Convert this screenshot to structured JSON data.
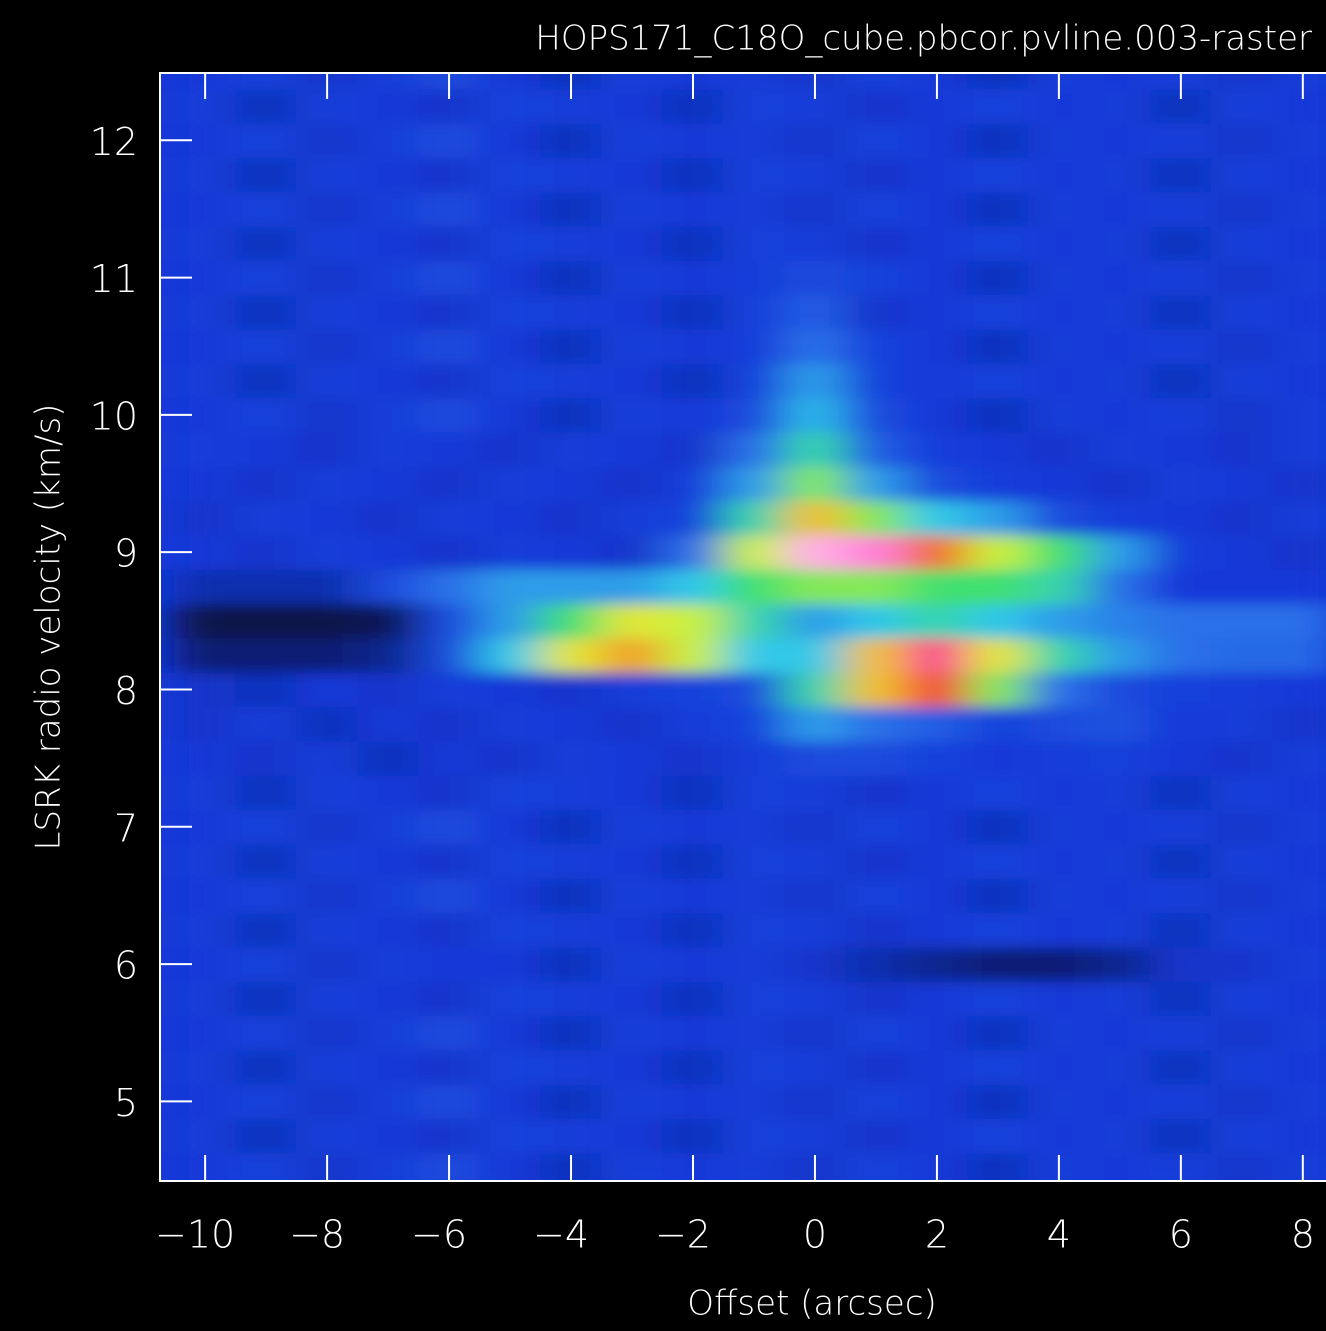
{
  "chart_data": {
    "type": "heatmap",
    "title": "HOPS171_C18O_cube.pbcor.pvline.003-raster",
    "xlabel": "Offset (arcsec)",
    "ylabel": "LSRK radio velocity  (km/s)",
    "xlim": [
      -10.74,
      8.38
    ],
    "ylim": [
      4.42,
      12.49
    ],
    "xticks": [
      {
        "value": -10,
        "label": "−10"
      },
      {
        "value": -8,
        "label": "−8"
      },
      {
        "value": -6,
        "label": "−6"
      },
      {
        "value": -4,
        "label": "−4"
      },
      {
        "value": -2,
        "label": "−2"
      },
      0,
      2,
      4,
      6,
      8
    ],
    "yticks": [
      5,
      6,
      7,
      8,
      9,
      10,
      11,
      12
    ],
    "colormap": [
      [
        0,
        "#000000"
      ],
      [
        0.15,
        "#1438d8"
      ],
      [
        0.3,
        "#2a70e8"
      ],
      [
        0.4,
        "#30c8e8"
      ],
      [
        0.5,
        "#40e070"
      ],
      [
        0.6,
        "#c8f040"
      ],
      [
        0.68,
        "#f0e030"
      ],
      [
        0.78,
        "#f04020"
      ],
      [
        0.88,
        "#ff40c0"
      ],
      [
        1,
        "#ffffff"
      ]
    ],
    "x": [
      -10,
      -9,
      -8,
      -7,
      -6,
      -5,
      -4,
      -3,
      -2,
      -1,
      0,
      1,
      2,
      3,
      4,
      5,
      6,
      7,
      8
    ],
    "y": [
      4.5,
      4.75,
      5.0,
      5.25,
      5.5,
      5.75,
      6.0,
      6.25,
      6.5,
      6.75,
      7.0,
      7.25,
      7.5,
      7.75,
      8.0,
      8.25,
      8.5,
      8.75,
      9.0,
      9.25,
      9.5,
      9.75,
      10.0,
      10.25,
      10.5,
      10.75,
      11.0,
      11.25,
      11.5,
      11.75,
      12.0,
      12.25,
      12.5
    ],
    "z": [
      [
        0.15,
        0.18,
        0.14,
        0.16,
        0.2,
        0.15,
        0.13,
        0.17,
        0.15,
        0.16,
        0.14,
        0.18,
        0.15,
        0.13,
        0.16,
        0.15,
        0.17,
        0.14,
        0.16
      ],
      [
        0.16,
        0.13,
        0.17,
        0.15,
        0.14,
        0.18,
        0.16,
        0.15,
        0.13,
        0.17,
        0.16,
        0.14,
        0.15,
        0.18,
        0.15,
        0.16,
        0.13,
        0.17,
        0.15
      ],
      [
        0.15,
        0.18,
        0.14,
        0.16,
        0.2,
        0.15,
        0.13,
        0.17,
        0.15,
        0.16,
        0.14,
        0.18,
        0.15,
        0.13,
        0.16,
        0.15,
        0.17,
        0.14,
        0.16
      ],
      [
        0.16,
        0.13,
        0.17,
        0.15,
        0.14,
        0.18,
        0.16,
        0.15,
        0.13,
        0.17,
        0.16,
        0.14,
        0.15,
        0.18,
        0.15,
        0.16,
        0.13,
        0.17,
        0.15
      ],
      [
        0.15,
        0.18,
        0.14,
        0.16,
        0.2,
        0.15,
        0.13,
        0.17,
        0.15,
        0.16,
        0.14,
        0.18,
        0.15,
        0.13,
        0.16,
        0.15,
        0.17,
        0.14,
        0.16
      ],
      [
        0.16,
        0.13,
        0.17,
        0.15,
        0.14,
        0.18,
        0.16,
        0.15,
        0.13,
        0.17,
        0.16,
        0.14,
        0.15,
        0.18,
        0.15,
        0.16,
        0.13,
        0.17,
        0.15
      ],
      [
        0.15,
        0.18,
        0.14,
        0.16,
        0.15,
        0.15,
        0.13,
        0.17,
        0.15,
        0.16,
        0.14,
        0.12,
        0.1,
        0.08,
        0.08,
        0.1,
        0.14,
        0.14,
        0.16
      ],
      [
        0.16,
        0.13,
        0.17,
        0.15,
        0.14,
        0.18,
        0.16,
        0.15,
        0.13,
        0.17,
        0.16,
        0.14,
        0.15,
        0.18,
        0.15,
        0.16,
        0.13,
        0.17,
        0.15
      ],
      [
        0.15,
        0.18,
        0.14,
        0.16,
        0.2,
        0.15,
        0.13,
        0.17,
        0.15,
        0.16,
        0.14,
        0.18,
        0.15,
        0.13,
        0.16,
        0.15,
        0.17,
        0.14,
        0.16
      ],
      [
        0.16,
        0.13,
        0.17,
        0.15,
        0.14,
        0.18,
        0.16,
        0.15,
        0.13,
        0.17,
        0.16,
        0.14,
        0.15,
        0.18,
        0.15,
        0.16,
        0.13,
        0.17,
        0.15
      ],
      [
        0.15,
        0.18,
        0.14,
        0.16,
        0.2,
        0.15,
        0.13,
        0.17,
        0.15,
        0.16,
        0.14,
        0.18,
        0.15,
        0.13,
        0.16,
        0.15,
        0.17,
        0.14,
        0.16
      ],
      [
        0.16,
        0.13,
        0.17,
        0.15,
        0.14,
        0.18,
        0.16,
        0.15,
        0.13,
        0.17,
        0.16,
        0.14,
        0.15,
        0.18,
        0.15,
        0.16,
        0.13,
        0.17,
        0.15
      ],
      [
        0.15,
        0.14,
        0.16,
        0.13,
        0.15,
        0.14,
        0.16,
        0.15,
        0.14,
        0.16,
        0.2,
        0.2,
        0.18,
        0.15,
        0.16,
        0.17,
        0.15,
        0.14,
        0.16
      ],
      [
        0.14,
        0.16,
        0.13,
        0.15,
        0.14,
        0.16,
        0.15,
        0.14,
        0.16,
        0.18,
        0.35,
        0.3,
        0.25,
        0.18,
        0.2,
        0.22,
        0.15,
        0.16,
        0.14
      ],
      [
        0.14,
        0.13,
        0.15,
        0.14,
        0.16,
        0.15,
        0.14,
        0.16,
        0.18,
        0.2,
        0.45,
        0.7,
        0.8,
        0.55,
        0.3,
        0.2,
        0.17,
        0.16,
        0.15
      ],
      [
        0.08,
        0.08,
        0.08,
        0.1,
        0.2,
        0.4,
        0.65,
        0.72,
        0.6,
        0.4,
        0.4,
        0.7,
        0.85,
        0.65,
        0.45,
        0.35,
        0.3,
        0.28,
        0.28
      ],
      [
        0.05,
        0.05,
        0.05,
        0.06,
        0.2,
        0.35,
        0.5,
        0.65,
        0.6,
        0.45,
        0.35,
        0.4,
        0.45,
        0.4,
        0.35,
        0.32,
        0.3,
        0.3,
        0.3
      ],
      [
        0.12,
        0.12,
        0.12,
        0.2,
        0.3,
        0.35,
        0.35,
        0.35,
        0.4,
        0.5,
        0.55,
        0.55,
        0.5,
        0.5,
        0.45,
        0.3,
        0.15,
        0.15,
        0.15
      ],
      [
        0.15,
        0.14,
        0.16,
        0.15,
        0.14,
        0.16,
        0.15,
        0.14,
        0.3,
        0.6,
        0.95,
        0.92,
        0.75,
        0.6,
        0.5,
        0.35,
        0.16,
        0.15,
        0.14
      ],
      [
        0.14,
        0.16,
        0.15,
        0.14,
        0.16,
        0.15,
        0.14,
        0.16,
        0.18,
        0.45,
        0.7,
        0.55,
        0.4,
        0.35,
        0.2,
        0.16,
        0.15,
        0.14,
        0.16
      ],
      [
        0.15,
        0.14,
        0.16,
        0.15,
        0.14,
        0.16,
        0.15,
        0.14,
        0.16,
        0.35,
        0.55,
        0.35,
        0.2,
        0.16,
        0.15,
        0.14,
        0.16,
        0.15,
        0.14
      ],
      [
        0.16,
        0.15,
        0.14,
        0.16,
        0.15,
        0.14,
        0.16,
        0.15,
        0.14,
        0.3,
        0.45,
        0.25,
        0.16,
        0.15,
        0.14,
        0.16,
        0.15,
        0.14,
        0.16
      ],
      [
        0.15,
        0.18,
        0.14,
        0.16,
        0.2,
        0.15,
        0.13,
        0.17,
        0.15,
        0.2,
        0.38,
        0.2,
        0.15,
        0.13,
        0.16,
        0.15,
        0.17,
        0.14,
        0.16
      ],
      [
        0.16,
        0.13,
        0.17,
        0.15,
        0.14,
        0.18,
        0.16,
        0.15,
        0.13,
        0.18,
        0.35,
        0.18,
        0.15,
        0.18,
        0.15,
        0.16,
        0.13,
        0.17,
        0.15
      ],
      [
        0.15,
        0.18,
        0.14,
        0.16,
        0.2,
        0.15,
        0.13,
        0.17,
        0.15,
        0.16,
        0.3,
        0.18,
        0.15,
        0.13,
        0.16,
        0.15,
        0.17,
        0.14,
        0.16
      ],
      [
        0.16,
        0.13,
        0.17,
        0.15,
        0.14,
        0.18,
        0.16,
        0.15,
        0.13,
        0.17,
        0.25,
        0.14,
        0.15,
        0.18,
        0.15,
        0.16,
        0.13,
        0.17,
        0.15
      ],
      [
        0.15,
        0.18,
        0.14,
        0.16,
        0.2,
        0.15,
        0.13,
        0.17,
        0.15,
        0.16,
        0.2,
        0.18,
        0.15,
        0.13,
        0.16,
        0.15,
        0.17,
        0.14,
        0.16
      ],
      [
        0.16,
        0.13,
        0.17,
        0.15,
        0.14,
        0.18,
        0.16,
        0.15,
        0.13,
        0.17,
        0.16,
        0.14,
        0.15,
        0.18,
        0.15,
        0.16,
        0.13,
        0.17,
        0.15
      ],
      [
        0.15,
        0.18,
        0.14,
        0.16,
        0.2,
        0.15,
        0.13,
        0.17,
        0.15,
        0.16,
        0.14,
        0.18,
        0.15,
        0.13,
        0.16,
        0.15,
        0.17,
        0.14,
        0.16
      ],
      [
        0.16,
        0.13,
        0.17,
        0.15,
        0.14,
        0.18,
        0.16,
        0.15,
        0.13,
        0.17,
        0.16,
        0.14,
        0.15,
        0.18,
        0.15,
        0.16,
        0.13,
        0.17,
        0.15
      ],
      [
        0.15,
        0.18,
        0.14,
        0.16,
        0.2,
        0.15,
        0.13,
        0.17,
        0.15,
        0.16,
        0.14,
        0.18,
        0.15,
        0.13,
        0.16,
        0.15,
        0.17,
        0.14,
        0.16
      ],
      [
        0.16,
        0.13,
        0.17,
        0.15,
        0.14,
        0.18,
        0.16,
        0.15,
        0.13,
        0.17,
        0.16,
        0.14,
        0.15,
        0.18,
        0.15,
        0.16,
        0.13,
        0.17,
        0.15
      ],
      [
        0.15,
        0.18,
        0.14,
        0.16,
        0.2,
        0.15,
        0.13,
        0.17,
        0.15,
        0.16,
        0.14,
        0.18,
        0.15,
        0.13,
        0.16,
        0.15,
        0.17,
        0.14,
        0.16
      ]
    ]
  }
}
